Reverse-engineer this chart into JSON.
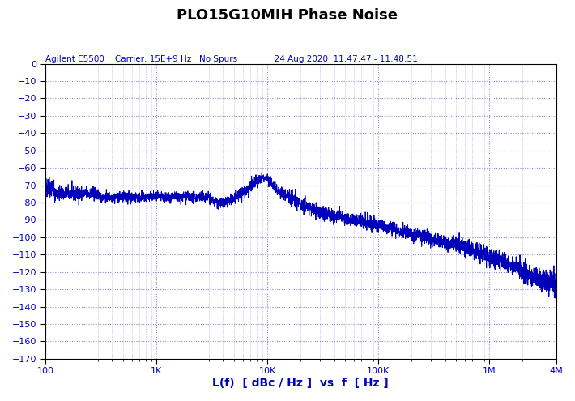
{
  "title": "PLO15G10MIH Phase Noise",
  "subtitle": "Agilent E5500    Carrier: 15E+9 Hz   No Spurs              24 Aug 2020  11:47:47 - 11:48:51",
  "xlabel": "L(f)  [ dBc / Hz ]  vs  f  [ Hz ]",
  "xlim_log": [
    100,
    4000000
  ],
  "ylim": [
    -170,
    0
  ],
  "yticks": [
    0,
    -10,
    -20,
    -30,
    -40,
    -50,
    -60,
    -70,
    -80,
    -90,
    -100,
    -110,
    -120,
    -130,
    -140,
    -150,
    -160,
    -170
  ],
  "xtick_positions": [
    100,
    1000,
    10000,
    100000,
    1000000,
    4000000
  ],
  "xtick_labels": [
    "100",
    "1K",
    "10K",
    "100K",
    "1M",
    "4M"
  ],
  "line_color": "#0000bb",
  "bg_color": "#ffffff",
  "grid_color": "#8888cc",
  "title_color": "#000000",
  "subtitle_color": "#0000bb",
  "axis_label_color": "#0000bb",
  "tick_label_color": "#0000bb",
  "title_fontsize": 13,
  "subtitle_fontsize": 7.5,
  "xlabel_fontsize": 10,
  "tick_fontsize": 8
}
